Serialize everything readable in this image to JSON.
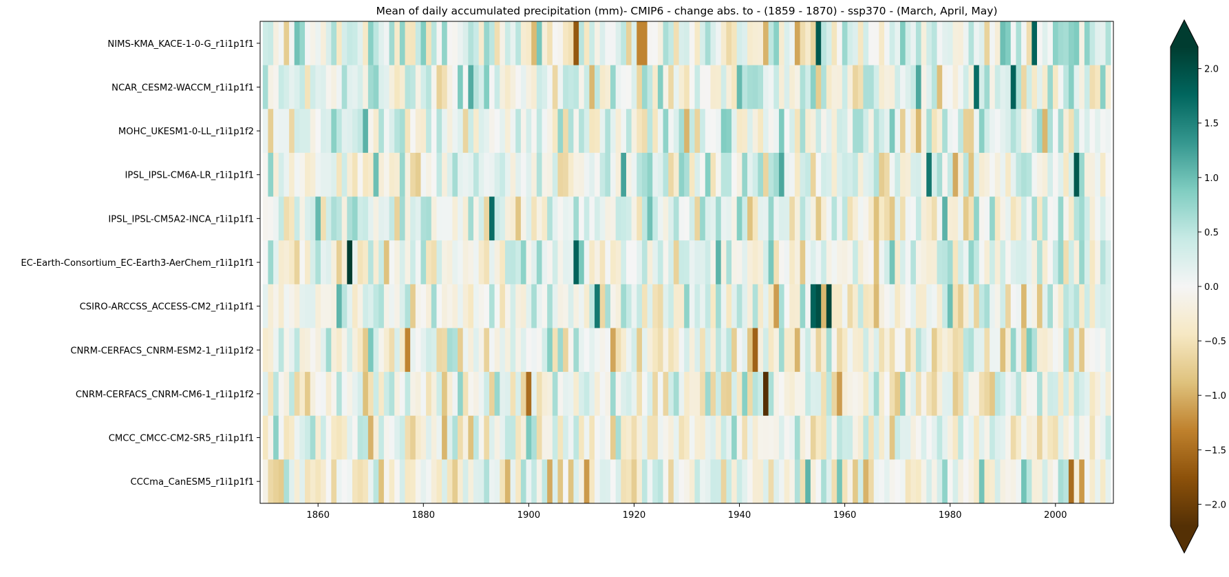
{
  "chart_data": {
    "type": "heatmap",
    "title": "Mean of daily accumulated precipitation (mm)- CMIP6 - change abs. to - (1859 - 1870) - ssp370  - (March, April, May)",
    "xlabel": "",
    "ylabel": "",
    "xlim": [
      1849,
      2011
    ],
    "x_ticks": [
      1860,
      1880,
      1900,
      1920,
      1940,
      1960,
      1980,
      2000
    ],
    "x_tick_labels": [
      "1860",
      "1880",
      "1900",
      "1920",
      "1940",
      "1960",
      "1980",
      "2000"
    ],
    "x_start_year": 1850,
    "x_end_year": 2010,
    "rows": [
      "NIMS-KMA_KACE-1-0-G_r1i1p1f1",
      "NCAR_CESM2-WACCM_r1i1p1f1",
      "MOHC_UKESM1-0-LL_r1i1p1f2",
      "IPSL_IPSL-CM6A-LR_r1i1p1f1",
      "IPSL_IPSL-CM5A2-INCA_r1i1p1f1",
      "EC-Earth-Consortium_EC-Earth3-AerChem_r1i1p1f1",
      "CSIRO-ARCCSS_ACCESS-CM2_r1i1p1f1",
      "CNRM-CERFACS_CNRM-ESM2-1_r1i1p1f2",
      "CNRM-CERFACS_CNRM-CM6-1_r1i1p1f2",
      "CMCC_CMCC-CM2-SR5_r1i1p1f1",
      "CCCma_CanESM5_r1i1p1f1"
    ],
    "colorbar": {
      "vmin": -2.2,
      "vmax": 2.2,
      "extend": "both",
      "ticks": [
        -2.0,
        -1.5,
        -1.0,
        -0.5,
        0.0,
        0.5,
        1.0,
        1.5,
        2.0
      ],
      "tick_labels": [
        "−2.0",
        "−1.5",
        "−1.0",
        "−0.5",
        "0.0",
        "0.5",
        "1.0",
        "1.5",
        "2.0"
      ],
      "colormap": "BrBG",
      "colormap_stops": [
        "#543005",
        "#8c510a",
        "#bf812d",
        "#dfc27d",
        "#f6e8c3",
        "#f5f5f5",
        "#c7eae5",
        "#80cdc1",
        "#35978f",
        "#01665e",
        "#003c30"
      ]
    },
    "highlights": [
      {
        "row": 0,
        "year": 1909,
        "value": -1.7
      },
      {
        "row": 0,
        "year": 1921,
        "value": -1.3
      },
      {
        "row": 0,
        "year": 1922,
        "value": -1.3
      },
      {
        "row": 0,
        "year": 1955,
        "value": 1.9
      },
      {
        "row": 0,
        "year": 1996,
        "value": 1.8
      },
      {
        "row": 1,
        "year": 1985,
        "value": 1.7
      },
      {
        "row": 1,
        "year": 1992,
        "value": 1.8
      },
      {
        "row": 3,
        "year": 1976,
        "value": 1.6
      },
      {
        "row": 3,
        "year": 2004,
        "value": 1.9
      },
      {
        "row": 4,
        "year": 1893,
        "value": 1.7
      },
      {
        "row": 5,
        "year": 1866,
        "value": 2.3
      },
      {
        "row": 5,
        "year": 1909,
        "value": 1.8
      },
      {
        "row": 6,
        "year": 1954,
        "value": 1.8
      },
      {
        "row": 6,
        "year": 1955,
        "value": 2.0
      },
      {
        "row": 6,
        "year": 1957,
        "value": 2.1
      },
      {
        "row": 6,
        "year": 1913,
        "value": 1.6
      },
      {
        "row": 7,
        "year": 1943,
        "value": -1.6
      },
      {
        "row": 7,
        "year": 1877,
        "value": -1.3
      },
      {
        "row": 8,
        "year": 1945,
        "value": -2.3
      },
      {
        "row": 8,
        "year": 1900,
        "value": -1.5
      },
      {
        "row": 10,
        "year": 2003,
        "value": -1.5
      }
    ]
  }
}
